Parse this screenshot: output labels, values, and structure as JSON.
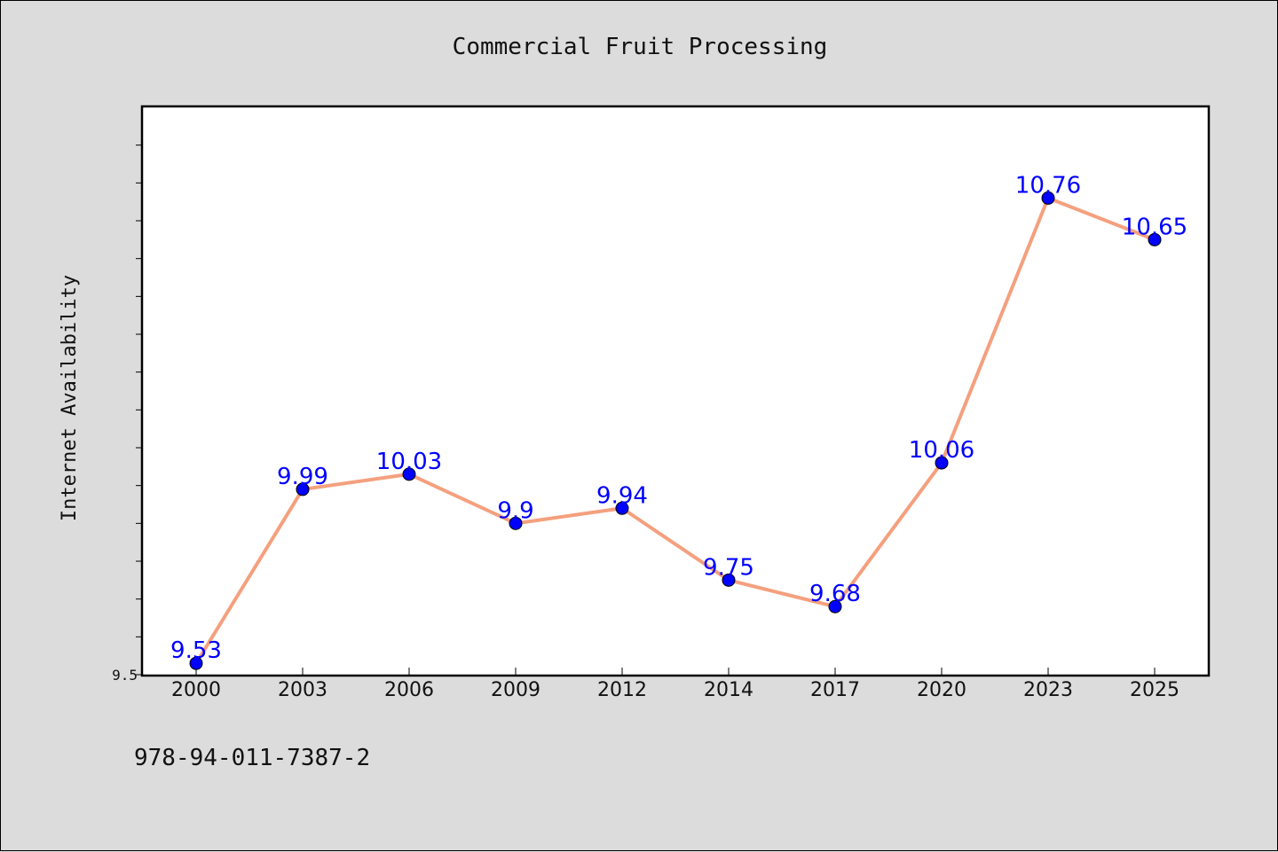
{
  "chart_data": {
    "type": "line",
    "title": "Commercial Fruit Processing",
    "xlabel": "",
    "ylabel": "Internet Availability",
    "categories": [
      "2000",
      "2003",
      "2006",
      "2009",
      "2012",
      "2014",
      "2017",
      "2020",
      "2023",
      "2025"
    ],
    "values": [
      9.53,
      9.99,
      10.03,
      9.9,
      9.94,
      9.75,
      9.68,
      10.06,
      10.76,
      10.65
    ],
    "data_labels": [
      "9.53",
      "9.99",
      "10.03",
      "9.9",
      "9.94",
      "9.75",
      "9.68",
      "10.06",
      "10.76",
      "10.65"
    ],
    "ylim": [
      9.5,
      11.0
    ],
    "y_tick_labels": [
      "9.5"
    ],
    "y_minor_step": 0.1,
    "grid": false,
    "line_color": "#f4a07e",
    "marker_color": "#0000ff",
    "label_color": "#0000ff"
  },
  "footer": {
    "isbn": "978-94-011-7387-2"
  }
}
